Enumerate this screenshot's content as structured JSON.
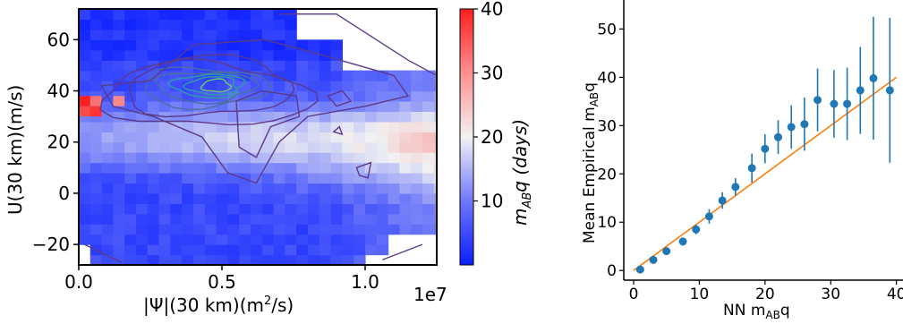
{
  "chart_data": [
    {
      "type": "heatmap",
      "x_tick_labels": [
        "0.0",
        "0.5",
        "1.0"
      ],
      "y_tick_labels": [
        "−20",
        "0",
        "20",
        "40",
        "60"
      ],
      "x_offset_label": "1e7",
      "xlabel": {
        "main": "|Ψ|(30 km)(m",
        "sup": "2",
        "tail": "/s)"
      },
      "ylabel": "U(30 km)(m/s)",
      "xlim": [
        0,
        12500000
      ],
      "ylim": [
        -28,
        72
      ],
      "colorbar": {
        "range": [
          0,
          40
        ],
        "tick_labels": [
          "10",
          "20",
          "30",
          "40"
        ],
        "label": {
          "main": "m",
          "sub": "AB",
          "tail": "q (days)"
        },
        "colors": {
          "low": "#0a1eff",
          "mid": "#f2f2f2",
          "high": "#ff1f1f"
        }
      },
      "contours": {
        "colors": [
          "#5b3a8a",
          "#4a6f9e",
          "#2e9ea0",
          "#6cc76a"
        ],
        "peak": {
          "x": 4800000,
          "y": 42
        }
      },
      "hot_cells": [
        {
          "x": 200000,
          "y": 36,
          "value": 40
        },
        {
          "x": 600000,
          "y": 36,
          "value": 32
        },
        {
          "x": 1400000,
          "y": 36,
          "value": 30
        },
        {
          "x": 200000,
          "y": 32,
          "value": 36
        },
        {
          "x": 600000,
          "y": 32,
          "value": 38
        }
      ]
    },
    {
      "type": "scatter",
      "xlabel": {
        "main": "NN m",
        "sub": "AB",
        "tail": "q"
      },
      "ylabel": {
        "main": "Mean Empirical m",
        "sub": "AB",
        "tail": "q"
      },
      "xlim": [
        -1.5,
        41
      ],
      "ylim": [
        -2,
        56
      ],
      "x_tick_labels": [
        "0",
        "10",
        "20",
        "30",
        "40"
      ],
      "y_tick_labels": [
        "0",
        "10",
        "20",
        "30",
        "40",
        "50"
      ],
      "line": {
        "x": [
          0,
          40
        ],
        "y": [
          0,
          40
        ],
        "color": "#ff7f0e"
      },
      "point_color": "#1f77b4",
      "points": [
        {
          "x": 1,
          "y": 0.2,
          "err": 0.6
        },
        {
          "x": 3,
          "y": 2.2,
          "err": 0.6
        },
        {
          "x": 5,
          "y": 4.0,
          "err": 0.7
        },
        {
          "x": 7.5,
          "y": 6.0,
          "err": 0.8
        },
        {
          "x": 9.5,
          "y": 8.5,
          "err": 1.0
        },
        {
          "x": 11.5,
          "y": 11.2,
          "err": 1.5
        },
        {
          "x": 13.5,
          "y": 14.5,
          "err": 1.7
        },
        {
          "x": 15.5,
          "y": 17.3,
          "err": 1.8
        },
        {
          "x": 18,
          "y": 21.2,
          "err": 3.0
        },
        {
          "x": 20,
          "y": 25.2,
          "err": 3.0
        },
        {
          "x": 22,
          "y": 27.6,
          "err": 3.5
        },
        {
          "x": 24,
          "y": 29.7,
          "err": 4.5
        },
        {
          "x": 26,
          "y": 30.3,
          "err": 5.5
        },
        {
          "x": 28,
          "y": 35.3,
          "err": 6.5
        },
        {
          "x": 30.5,
          "y": 34.5,
          "err": 7.0
        },
        {
          "x": 32.5,
          "y": 34.5,
          "err": 7.5
        },
        {
          "x": 34.5,
          "y": 37.3,
          "err": 9.0
        },
        {
          "x": 36.5,
          "y": 39.8,
          "err": 12.7
        },
        {
          "x": 39,
          "y": 37.3,
          "err": 15.0
        }
      ]
    }
  ]
}
